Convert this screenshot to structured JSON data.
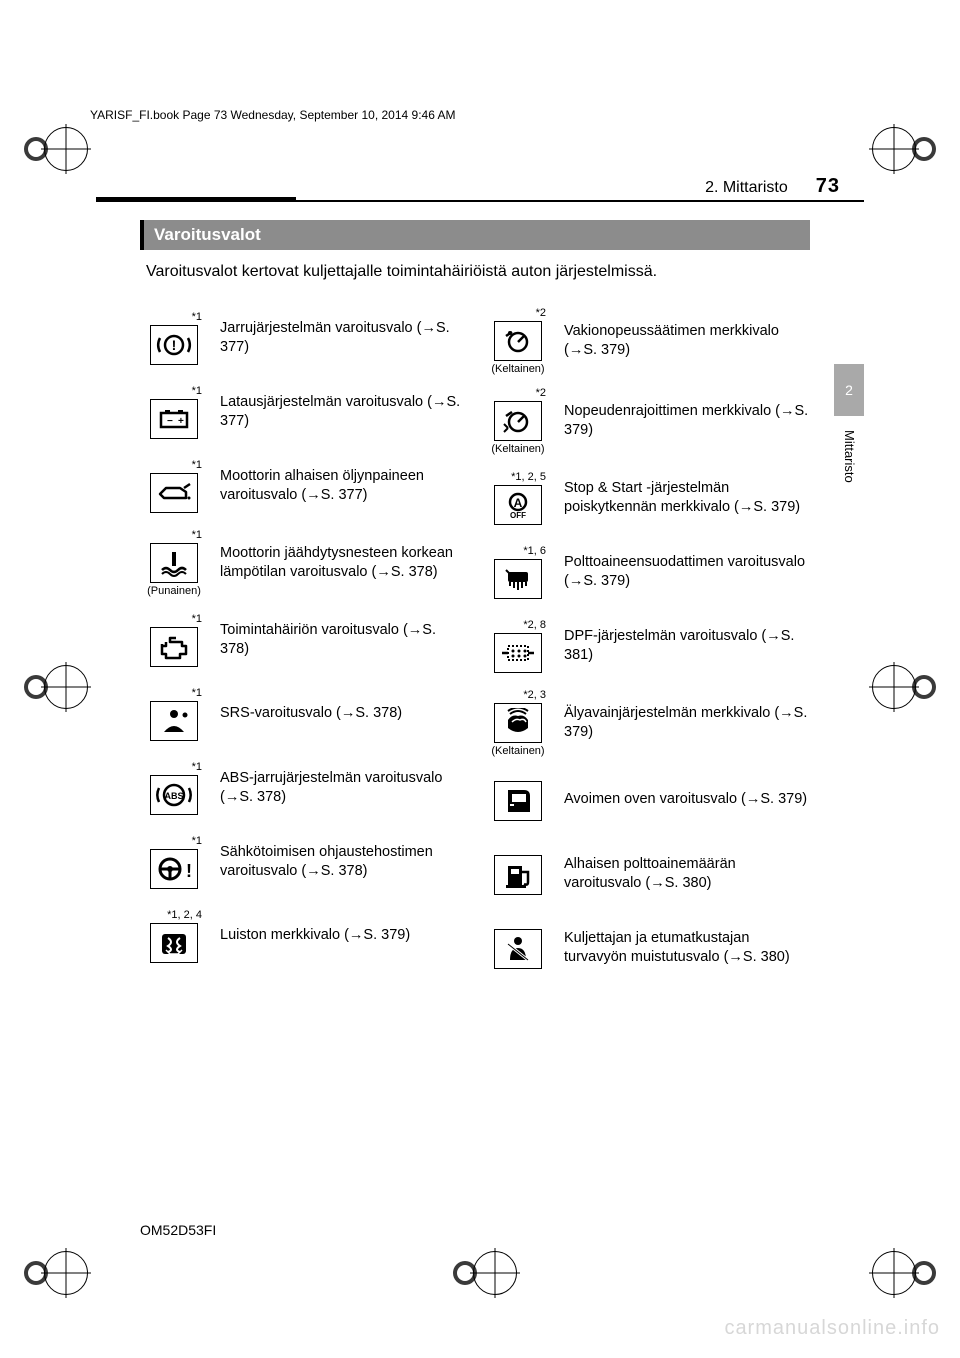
{
  "header_text": "YARISF_FI.book  Page 73  Wednesday, September 10, 2014  9:46 AM",
  "chapter_label": "2. Mittaristo",
  "page_number": "73",
  "side_tab_number": "2",
  "side_tab_label": "Mittaristo",
  "section_title": "Varoitusvalot",
  "intro_text": "Varoitusvalot kertovat kuljettajalle toimintahäiriöistä auton järjestelmissä.",
  "doc_code": "OM52D53FI",
  "watermark": "carmanualsonline.info",
  "colors": {
    "titlebar_bg": "#8c8c8c",
    "sidetab_bg": "#a9a9a9",
    "watermark_color": "#d7d7d7"
  },
  "left_lights": [
    {
      "note": "*1",
      "subnote": "",
      "icon": "brake",
      "desc": "Jarrujärjestelmän varoitusvalo (→S. 377)"
    },
    {
      "note": "*1",
      "subnote": "",
      "icon": "battery",
      "desc": "Latausjärjestelmän varoitusvalo (→S. 377)"
    },
    {
      "note": "*1",
      "subnote": "",
      "icon": "oilcan",
      "desc": "Moottorin alhaisen öljynpaineen varoitusvalo (→S. 377)"
    },
    {
      "note": "*1",
      "subnote": "(Punainen)",
      "icon": "coolant",
      "desc": "Moottorin jäähdytysnesteen korkean lämpötilan varoitusvalo (→S. 378)"
    },
    {
      "note": "*1",
      "subnote": "",
      "icon": "engine",
      "desc": "Toimintahäiriön varoitusvalo (→S. 378)"
    },
    {
      "note": "*1",
      "subnote": "",
      "icon": "airbag",
      "desc": "SRS-varoitusvalo (→S. 378)"
    },
    {
      "note": "*1",
      "subnote": "",
      "icon": "abs",
      "desc": "ABS-jarrujärjestelmän varoitusvalo (→S. 378)"
    },
    {
      "note": "*1",
      "subnote": "",
      "icon": "steering",
      "desc": "Sähkötoimisen ohjaustehostimen varoitusvalo (→S. 378)"
    },
    {
      "note": "*1, 2, 4",
      "subnote": "",
      "icon": "slip",
      "desc": "Luiston merkkivalo (→S. 379)"
    }
  ],
  "right_lights": [
    {
      "note": "*2",
      "subnote": "(Keltainen)",
      "icon": "cruise",
      "desc": "Vakionopeussäätimen merkkivalo (→S. 379)"
    },
    {
      "note": "*2",
      "subnote": "(Keltainen)",
      "icon": "limit",
      "desc": "Nopeudenrajoittimen merkkivalo (→S. 379)"
    },
    {
      "note": "*1, 2, 5",
      "subnote": "",
      "icon": "stopstart",
      "desc": "Stop & Start -järjestelmän poiskytkennän merkkivalo (→S. 379)"
    },
    {
      "note": "*1, 6",
      "subnote": "",
      "icon": "fuelfilter",
      "desc": "Polttoaineensuodattimen varoitusvalo (→S. 379)"
    },
    {
      "note": "*2, 8",
      "subnote": "",
      "icon": "dpf",
      "desc": "DPF-järjestelmän varoitusvalo (→S. 381)"
    },
    {
      "note": "*2, 3",
      "subnote": "(Keltainen)",
      "icon": "smartkey",
      "desc": "Älyavainjärjestelmän merkkivalo (→S. 379)"
    },
    {
      "note": "",
      "subnote": "",
      "icon": "door",
      "desc": "Avoimen oven varoitusvalo (→S. 379)"
    },
    {
      "note": "",
      "subnote": "",
      "icon": "fuel",
      "desc": "Alhaisen polttoainemäärän varoitusvalo (→S. 380)"
    },
    {
      "note": "",
      "subnote": "",
      "icon": "seatbelt",
      "desc": "Kuljettajan ja etumatkustajan turvavyön muistutusvalo (→S. 380)"
    }
  ]
}
